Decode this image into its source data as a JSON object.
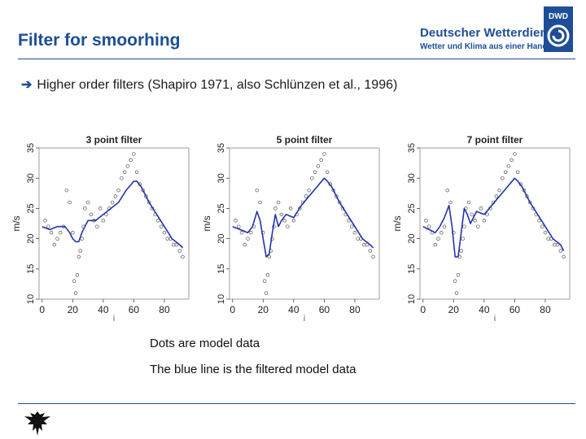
{
  "slide": {
    "title": "Filter for smoorhing",
    "bullet_arrow": "➔",
    "bullet": "Higher order filters (Shapiro 1971, also Schlünzen et al., 1996)",
    "caption1": "Dots are model data",
    "caption2": "The blue line is the filtered model data"
  },
  "brand": {
    "name": "Deutscher Wetterdienst",
    "subtitle": "Wetter und Klima aus einer Hand",
    "logo_text": "DWD",
    "color": "#1d4e97"
  },
  "colors": {
    "title": "#1d4e97",
    "filtered_line": "#2233aa",
    "points": "#555555"
  },
  "chart_data": [
    {
      "type": "scatter",
      "title": "3 point filter",
      "xlabel": "i",
      "ylabel": "m/s",
      "xticks": [
        0,
        20,
        40,
        60,
        80
      ],
      "yticks": [
        10,
        15,
        20,
        25,
        30,
        35
      ],
      "xlim": [
        -2,
        96
      ],
      "ylim": [
        10,
        35
      ],
      "series": [
        {
          "kind": "points",
          "x": [
            2,
            4,
            6,
            8,
            10,
            12,
            14,
            16,
            18,
            20,
            21,
            22,
            23,
            24,
            25,
            26,
            27,
            28,
            30,
            32,
            34,
            36,
            38,
            40,
            42,
            44,
            46,
            48,
            50,
            52,
            54,
            56,
            58,
            60,
            62,
            64,
            66,
            68,
            70,
            72,
            74,
            76,
            78,
            80,
            82,
            84,
            86,
            88,
            90,
            92
          ],
          "y": [
            23,
            22,
            21,
            19,
            20,
            21,
            22,
            28,
            26,
            21,
            13,
            11,
            14,
            17,
            18,
            20,
            22,
            25,
            26,
            24,
            23,
            22,
            25,
            23,
            24,
            25,
            26,
            27,
            28,
            30,
            31,
            32,
            33,
            34,
            31,
            29,
            28,
            27,
            26,
            25,
            24,
            23,
            22,
            21,
            20,
            20,
            19,
            19,
            18,
            17
          ]
        },
        {
          "kind": "line",
          "x": [
            0,
            5,
            10,
            15,
            18,
            20,
            22,
            24,
            26,
            28,
            30,
            35,
            40,
            45,
            50,
            55,
            60,
            62,
            65,
            70,
            75,
            80,
            85,
            90,
            92
          ],
          "y": [
            22,
            21.5,
            22,
            22,
            21,
            20,
            19.5,
            19.5,
            21,
            22,
            23,
            23,
            24,
            25,
            26,
            28,
            29.5,
            29.5,
            28.5,
            26,
            24,
            22,
            20,
            19,
            18.5
          ]
        }
      ]
    },
    {
      "type": "scatter",
      "title": "5 point filter",
      "xlabel": "i",
      "ylabel": "m/s",
      "xticks": [
        0,
        20,
        40,
        60,
        80
      ],
      "yticks": [
        10,
        15,
        20,
        25,
        30,
        35
      ],
      "xlim": [
        -2,
        96
      ],
      "ylim": [
        10,
        35
      ],
      "series": [
        {
          "kind": "points",
          "x": [
            2,
            4,
            6,
            8,
            10,
            12,
            14,
            16,
            18,
            20,
            21,
            22,
            23,
            24,
            25,
            26,
            27,
            28,
            30,
            32,
            34,
            36,
            38,
            40,
            42,
            44,
            46,
            48,
            50,
            52,
            54,
            56,
            58,
            60,
            62,
            64,
            66,
            68,
            70,
            72,
            74,
            76,
            78,
            80,
            82,
            84,
            86,
            88,
            90,
            92
          ],
          "y": [
            23,
            22,
            21,
            19,
            20,
            21,
            22,
            28,
            26,
            21,
            13,
            11,
            14,
            17,
            18,
            20,
            22,
            25,
            26,
            24,
            23,
            22,
            25,
            23,
            24,
            25,
            26,
            27,
            28,
            30,
            31,
            32,
            33,
            34,
            31,
            29,
            28,
            27,
            26,
            25,
            24,
            23,
            22,
            21,
            20,
            20,
            19,
            19,
            18,
            17
          ]
        },
        {
          "kind": "line",
          "x": [
            0,
            5,
            10,
            13,
            16,
            18,
            20,
            22,
            24,
            26,
            28,
            30,
            32,
            35,
            40,
            45,
            50,
            55,
            60,
            62,
            65,
            70,
            75,
            80,
            85,
            90,
            92
          ],
          "y": [
            22,
            21.5,
            21,
            22,
            24.5,
            23,
            20,
            17,
            17.5,
            21,
            24,
            22,
            23,
            24,
            23.5,
            25.5,
            27,
            28.5,
            30,
            29.5,
            28.5,
            26,
            24,
            22,
            20,
            19,
            18.5
          ]
        }
      ]
    },
    {
      "type": "scatter",
      "title": "7 point filter",
      "xlabel": "i",
      "ylabel": "m/s",
      "xticks": [
        0,
        20,
        40,
        60,
        80
      ],
      "yticks": [
        10,
        15,
        20,
        25,
        30,
        35
      ],
      "xlim": [
        -2,
        96
      ],
      "ylim": [
        10,
        35
      ],
      "series": [
        {
          "kind": "points",
          "x": [
            2,
            4,
            6,
            8,
            10,
            12,
            14,
            16,
            18,
            20,
            21,
            22,
            23,
            24,
            25,
            26,
            27,
            28,
            30,
            32,
            34,
            36,
            38,
            40,
            42,
            44,
            46,
            48,
            50,
            52,
            54,
            56,
            58,
            60,
            62,
            64,
            66,
            68,
            70,
            72,
            74,
            76,
            78,
            80,
            82,
            84,
            86,
            88,
            90,
            92
          ],
          "y": [
            23,
            22,
            21,
            19,
            20,
            21,
            22,
            28,
            26,
            21,
            13,
            11,
            14,
            17,
            18,
            20,
            22,
            25,
            26,
            24,
            23,
            22,
            25,
            23,
            24,
            25,
            26,
            27,
            28,
            30,
            31,
            32,
            33,
            34,
            31,
            29,
            28,
            27,
            26,
            25,
            24,
            23,
            22,
            21,
            20,
            20,
            19,
            19,
            18,
            17
          ]
        },
        {
          "kind": "line",
          "x": [
            0,
            4,
            8,
            11,
            14,
            17,
            19,
            21,
            23,
            25,
            27,
            29,
            31,
            33,
            35,
            40,
            45,
            50,
            55,
            60,
            62,
            65,
            70,
            75,
            80,
            85,
            90,
            92
          ],
          "y": [
            22,
            21.5,
            21,
            22,
            23.5,
            25.5,
            22,
            17,
            17,
            21,
            25,
            24,
            22.5,
            23.5,
            24.5,
            24,
            25.5,
            27,
            28.5,
            30,
            29.5,
            28.5,
            26,
            24,
            22,
            20,
            19,
            18
          ]
        }
      ]
    }
  ]
}
